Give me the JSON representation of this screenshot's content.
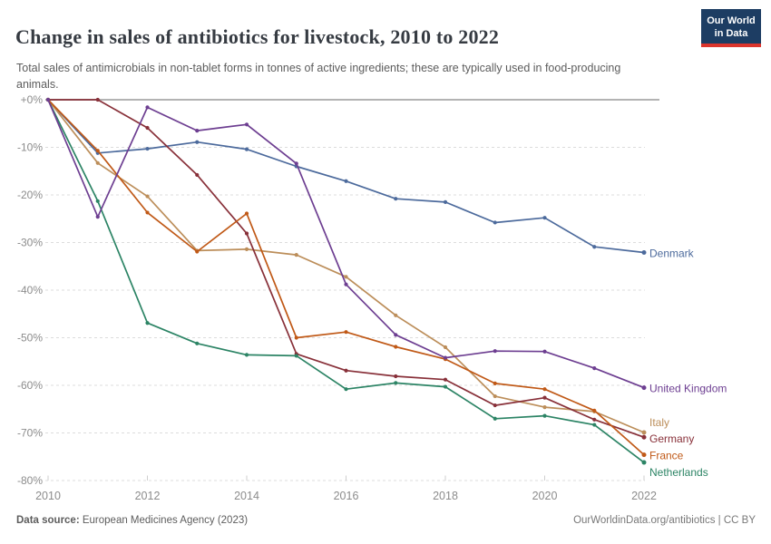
{
  "header": {
    "title": "Change in sales of antibiotics for livestock, 2010 to 2022",
    "subtitle": "Total sales of antimicrobials in non-tablet forms in tonnes of active ingredients; these are typically used in food-producing animals.",
    "logo": {
      "line1": "Our World",
      "line2": "in Data",
      "bg_color": "#1d3d63",
      "bar_color": "#dc352c"
    }
  },
  "footer": {
    "source_label": "Data source:",
    "source_value": " European Medicines Agency (2023)",
    "credit": "OurWorldinData.org/antibiotics | CC BY"
  },
  "chart_data": {
    "type": "line",
    "title": "Change in sales of antibiotics for livestock, 2010 to 2022",
    "xlabel": "",
    "ylabel": "",
    "x": [
      2010,
      2011,
      2012,
      2013,
      2014,
      2015,
      2016,
      2017,
      2018,
      2019,
      2020,
      2021,
      2022
    ],
    "x_ticks": [
      2010,
      2012,
      2014,
      2016,
      2018,
      2020,
      2022
    ],
    "y_ticks": [
      {
        "value": 0,
        "label": "+0%"
      },
      {
        "value": -10,
        "label": "-10%"
      },
      {
        "value": -20,
        "label": "-20%"
      },
      {
        "value": -30,
        "label": "-30%"
      },
      {
        "value": -40,
        "label": "-40%"
      },
      {
        "value": -50,
        "label": "-50%"
      },
      {
        "value": -60,
        "label": "-60%"
      },
      {
        "value": -70,
        "label": "-70%"
      },
      {
        "value": -80,
        "label": "-80%"
      }
    ],
    "ylim": [
      -80,
      0
    ],
    "xlim": [
      2010,
      2022
    ],
    "grid": "horizontal-dashed",
    "legend_position": "end-of-line-labels",
    "series": [
      {
        "name": "Denmark",
        "color": "#4C6A9C",
        "z": 0,
        "label_dy": 1,
        "values": [
          0,
          -11.2,
          -10.3,
          -8.9,
          -10.4,
          -14.0,
          -17.1,
          -20.8,
          -21.5,
          -25.8,
          -24.8,
          -30.9,
          -32.1
        ]
      },
      {
        "name": "United Kingdom",
        "color": "#6D3E91",
        "z": 3,
        "label_dy": 1,
        "values": [
          0,
          -24.6,
          -1.6,
          -6.5,
          -5.2,
          -13.4,
          -38.8,
          -49.4,
          -54.2,
          -52.8,
          -52.9,
          -56.4,
          -60.5
        ]
      },
      {
        "name": "Italy",
        "color": "#BC8E5A",
        "z": 0,
        "label_dy": -11,
        "values": [
          0,
          -13.3,
          -20.3,
          -31.7,
          -31.4,
          -32.6,
          -37.2,
          -45.3,
          -52.0,
          -62.3,
          -64.6,
          -65.5,
          -69.9
        ]
      },
      {
        "name": "Germany",
        "color": "#883039",
        "z": 0,
        "label_dy": 2,
        "values": [
          0,
          0,
          -5.9,
          -15.8,
          -28.1,
          -53.4,
          -56.9,
          -58.1,
          -58.8,
          -64.2,
          -62.6,
          -67.2,
          -70.9
        ]
      },
      {
        "name": "France",
        "color": "#C05917",
        "z": 2,
        "label_dy": 1,
        "values": [
          0,
          -10.7,
          -23.7,
          -31.9,
          -23.9,
          -50.0,
          -48.8,
          -51.9,
          -54.5,
          -59.6,
          -60.8,
          -65.3,
          -74.6
        ]
      },
      {
        "name": "Netherlands",
        "color": "#2C8465",
        "z": 1,
        "label_dy": 11,
        "values": [
          0,
          -21.3,
          -46.9,
          -51.2,
          -53.6,
          -53.8,
          -60.8,
          -59.5,
          -60.3,
          -67.0,
          -66.4,
          -68.3,
          -76.2
        ]
      }
    ]
  }
}
